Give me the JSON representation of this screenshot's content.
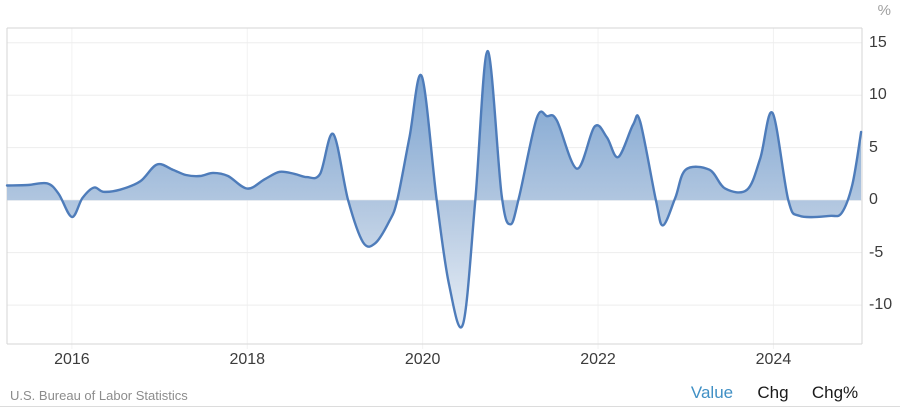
{
  "header": {
    "unit_label": "%"
  },
  "footer": {
    "source": "U.S. Bureau of Labor Statistics",
    "value_label": "Value",
    "chg_label": "Chg",
    "chgpct_label": "Chg%"
  },
  "colors": {
    "line": "#4e7cba",
    "fill_top": "#6f9bcd",
    "fill_mid": "#b2c7e0",
    "fill_bottom": "#eaf0f7",
    "link_blue": "#4090c5",
    "axis_text": "#3c3c3c",
    "muted_text": "#8c8c8c",
    "grid": "#ededed",
    "year_grid": "#f2f2f2",
    "border": "#d6d6d6"
  },
  "chart_data": {
    "type": "area",
    "title": "",
    "xlabel": "",
    "ylabel": "%",
    "grid": true,
    "baseline": 0,
    "legend_position": "none",
    "x_ticks": [
      2016,
      2018,
      2020,
      2022,
      2024
    ],
    "y_ticks": [
      15,
      10,
      5,
      0,
      -5,
      -10
    ],
    "xlim": [
      2015.26,
      2025.01
    ],
    "ylim": [
      -13.7,
      16.4
    ],
    "points": [
      [
        2015.26,
        1.4
      ],
      [
        2015.5,
        1.45
      ],
      [
        2015.72,
        1.6
      ],
      [
        2015.85,
        0.6
      ],
      [
        2016.0,
        -1.6
      ],
      [
        2016.12,
        0.2
      ],
      [
        2016.25,
        1.2
      ],
      [
        2016.36,
        0.8
      ],
      [
        2016.55,
        1.0
      ],
      [
        2016.78,
        1.8
      ],
      [
        2016.97,
        3.4
      ],
      [
        2017.15,
        2.9
      ],
      [
        2017.3,
        2.4
      ],
      [
        2017.46,
        2.3
      ],
      [
        2017.61,
        2.6
      ],
      [
        2017.78,
        2.3
      ],
      [
        2018.0,
        1.1
      ],
      [
        2018.2,
        2.0
      ],
      [
        2018.37,
        2.7
      ],
      [
        2018.54,
        2.5
      ],
      [
        2018.68,
        2.2
      ],
      [
        2018.83,
        2.5
      ],
      [
        2018.98,
        6.3
      ],
      [
        2019.15,
        0.0
      ],
      [
        2019.32,
        -4.0
      ],
      [
        2019.46,
        -4.1
      ],
      [
        2019.62,
        -2.0
      ],
      [
        2019.71,
        0.0
      ],
      [
        2019.85,
        6.0
      ],
      [
        2019.99,
        11.8
      ],
      [
        2020.16,
        0.0
      ],
      [
        2020.3,
        -8.0
      ],
      [
        2020.46,
        -11.8
      ],
      [
        2020.6,
        0.0
      ],
      [
        2020.74,
        14.2
      ],
      [
        2020.9,
        0.5
      ],
      [
        2021.0,
        -2.3
      ],
      [
        2021.1,
        0.3
      ],
      [
        2021.3,
        7.8
      ],
      [
        2021.42,
        8.0
      ],
      [
        2021.53,
        7.6
      ],
      [
        2021.76,
        3.0
      ],
      [
        2021.96,
        7.0
      ],
      [
        2022.1,
        6.0
      ],
      [
        2022.23,
        4.1
      ],
      [
        2022.4,
        7.2
      ],
      [
        2022.48,
        7.5
      ],
      [
        2022.66,
        0.0
      ],
      [
        2022.74,
        -2.4
      ],
      [
        2022.88,
        0.2
      ],
      [
        2023.0,
        2.9
      ],
      [
        2023.27,
        2.9
      ],
      [
        2023.45,
        1.1
      ],
      [
        2023.7,
        1.0
      ],
      [
        2023.85,
        4.0
      ],
      [
        2023.99,
        8.3
      ],
      [
        2024.17,
        0.0
      ],
      [
        2024.3,
        -1.5
      ],
      [
        2024.64,
        -1.5
      ],
      [
        2024.78,
        -1.2
      ],
      [
        2024.9,
        1.5
      ],
      [
        2025.0,
        6.5
      ]
    ]
  }
}
